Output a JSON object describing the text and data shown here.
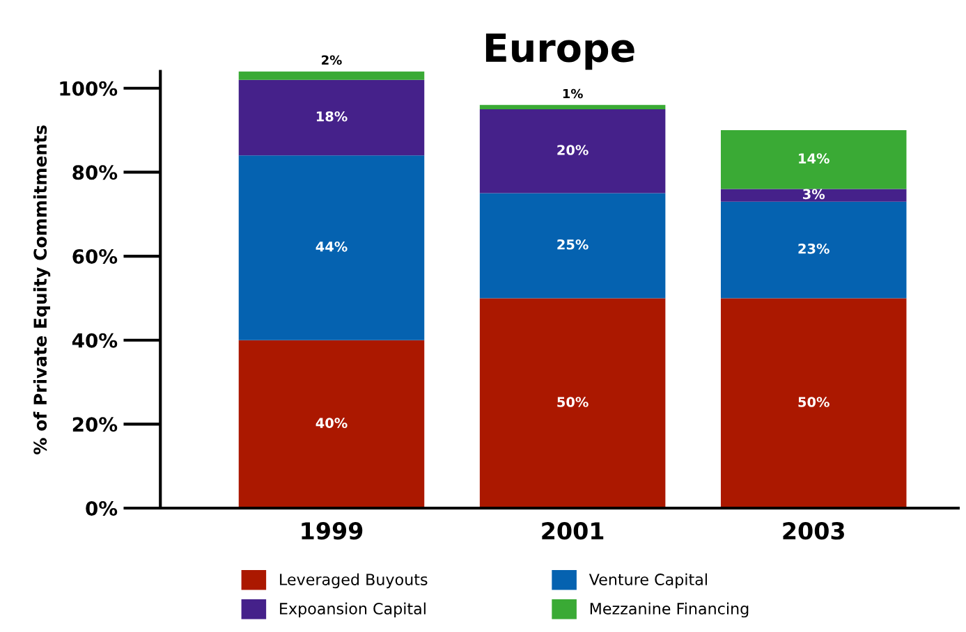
{
  "chart_data": {
    "type": "bar",
    "title": "Europe",
    "ylabel": "% of Private Equity Commitments",
    "categories": [
      "1999",
      "2001",
      "2003"
    ],
    "stacked": true,
    "legend": "bottom",
    "grid": false,
    "ylim": [
      0,
      104
    ],
    "yticks": [
      {
        "value": 0,
        "label": "0%"
      },
      {
        "value": 20,
        "label": "20%"
      },
      {
        "value": 40,
        "label": "40%"
      },
      {
        "value": 60,
        "label": "60%"
      },
      {
        "value": 80,
        "label": "80%"
      },
      {
        "value": 100,
        "label": "100%"
      }
    ],
    "series": [
      {
        "name": "Leveraged Buyouts",
        "color": "#ab1800",
        "values": [
          40,
          50,
          50
        ],
        "value_labels": [
          "40%",
          "50%",
          "50%"
        ]
      },
      {
        "name": "Venture Capital",
        "color": "#0562b0",
        "values": [
          44,
          25,
          23
        ],
        "value_labels": [
          "44%",
          "25%",
          "23%"
        ]
      },
      {
        "name": "Expoansion Capital",
        "color": "#45218a",
        "values": [
          18,
          20,
          3
        ],
        "value_labels": [
          "18%",
          "20%",
          "3%"
        ]
      },
      {
        "name": "Mezzanine Financing",
        "color": "#3aaa35",
        "values": [
          2,
          1,
          14
        ],
        "value_labels": [
          "2%",
          "1%",
          "14%"
        ]
      }
    ]
  }
}
